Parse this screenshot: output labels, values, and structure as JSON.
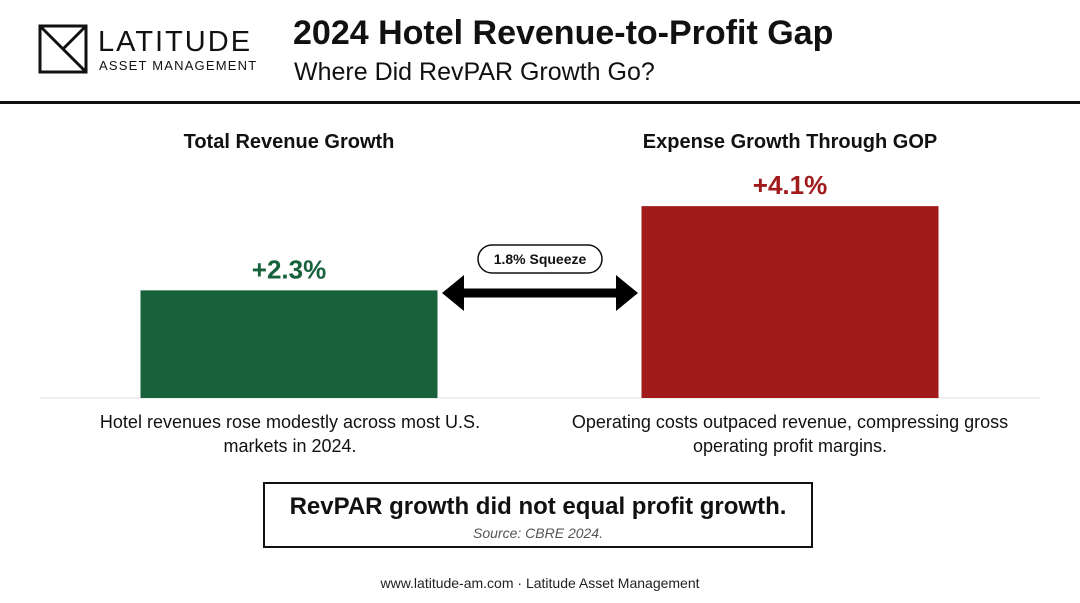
{
  "brand": {
    "name": "LATITUDE",
    "subname": "ASSET MANAGEMENT"
  },
  "header": {
    "title": "2024 Hotel Revenue-to-Profit Gap",
    "subtitle": "Where Did RevPAR Growth Go?"
  },
  "chart_data": {
    "type": "bar",
    "categories": [
      "Total Revenue Growth",
      "Expense Growth Through GOP"
    ],
    "values": [
      2.3,
      4.1
    ],
    "value_labels": [
      "+2.3%",
      "+4.1%"
    ],
    "colors": [
      "#17613b",
      "#a11b1b"
    ],
    "value_label_colors": [
      "#17613b",
      "#a11b1b"
    ],
    "unit": "%",
    "annotation": "1.8% Squeeze",
    "grid": false,
    "legend": "none"
  },
  "descriptions": {
    "left": "Hotel revenues rose modestly across most U.S. markets in 2024.",
    "right": "Operating costs outpaced revenue, compressing gross operating profit margins."
  },
  "callout": {
    "main": "RevPAR growth did not equal profit growth.",
    "source": "Source: CBRE 2024."
  },
  "footer": "www.latitude-am.com · Latitude Asset Management"
}
